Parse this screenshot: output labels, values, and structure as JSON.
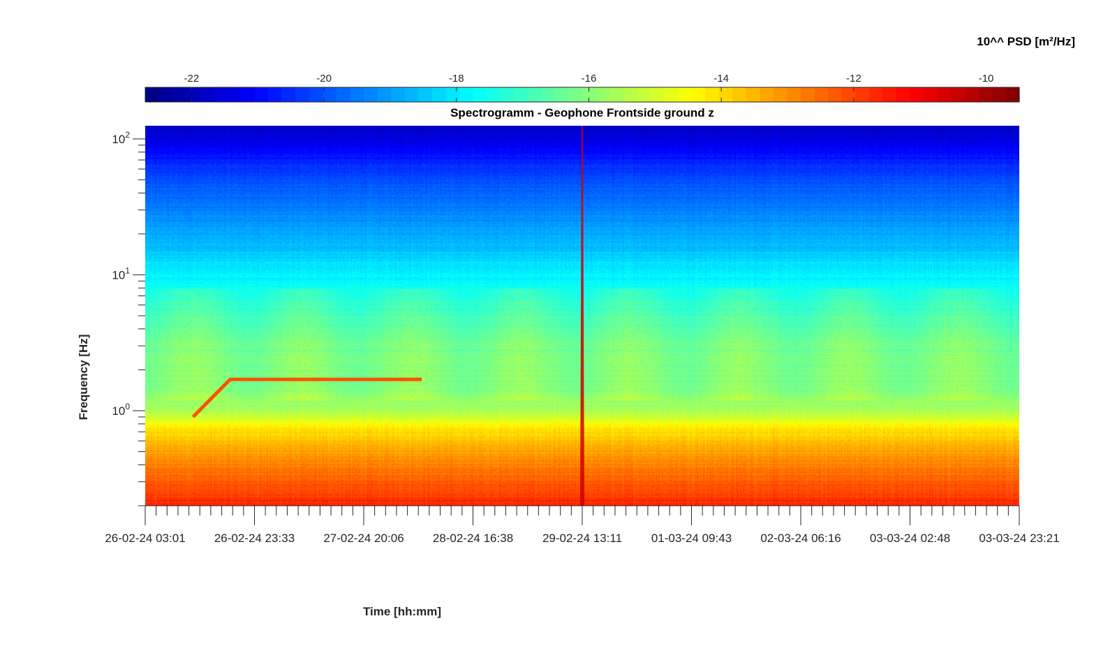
{
  "chart_data": {
    "type": "heatmap",
    "title": "Spectrogramm - Geophone Frontside ground z",
    "xlabel": "Time [hh:mm]",
    "ylabel": "Frequency [Hz]",
    "colorbar_label": "10^^ PSD [m²/Hz]",
    "colormap": "jet",
    "colorbar_range": [
      -22.7,
      -9.5
    ],
    "colorbar_ticks": [
      "-22",
      "-20",
      "-18",
      "-16",
      "-14",
      "-12",
      "-10"
    ],
    "x_tick_labels": [
      "26-02-24 03:01",
      "26-02-24 23:33",
      "27-02-24 20:06",
      "28-02-24 16:38",
      "29-02-24 13:11",
      "01-03-24 09:43",
      "02-03-24 06:16",
      "03-03-24 02:48",
      "03-03-24 23:21"
    ],
    "y_scale": "log",
    "y_range_hz": [
      0.2,
      125
    ],
    "y_tick_labels": [
      {
        "base": "10",
        "exp": "2"
      },
      {
        "base": "10",
        "exp": "1"
      },
      {
        "base": "10",
        "exp": "0"
      }
    ],
    "frequency_profile": [
      {
        "freq_hz": 125,
        "log_psd": -21.8
      },
      {
        "freq_hz": 80,
        "log_psd": -21.0
      },
      {
        "freq_hz": 50,
        "log_psd": -20.0
      },
      {
        "freq_hz": 30,
        "log_psd": -19.4
      },
      {
        "freq_hz": 15,
        "log_psd": -18.5
      },
      {
        "freq_hz": 10,
        "log_psd": -17.9
      },
      {
        "freq_hz": 6,
        "log_psd": -17.2
      },
      {
        "freq_hz": 3,
        "log_psd": -16.4
      },
      {
        "freq_hz": 1.5,
        "log_psd": -16.3
      },
      {
        "freq_hz": 1.0,
        "log_psd": -15.5
      },
      {
        "freq_hz": 0.75,
        "log_psd": -14.2
      },
      {
        "freq_hz": 0.5,
        "log_psd": -13.2
      },
      {
        "freq_hz": 0.3,
        "log_psd": -12.3
      },
      {
        "freq_hz": 0.2,
        "log_psd": -11.6
      }
    ],
    "tonal_line": {
      "freq_start_hz": 0.9,
      "freq_hz": 1.7,
      "start": "26-02-24 12:00",
      "plateau_from": "26-02-24 19:00",
      "end": "28-02-24 07:00",
      "log_psd": -12.2
    },
    "transient_spike": {
      "time": "29-02-24 13:11",
      "log_psd": -10.5
    }
  }
}
